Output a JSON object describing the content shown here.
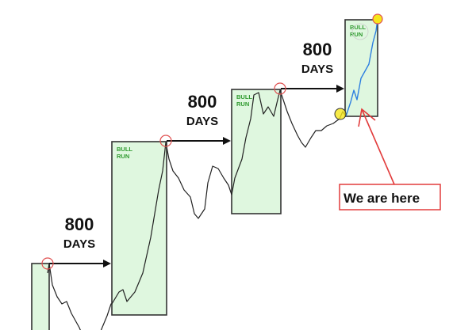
{
  "chart_data": {
    "type": "line",
    "title": "",
    "xlabel": "",
    "ylabel": "",
    "grid": false,
    "colors": {
      "price": "#222222",
      "current_run": "#2d7fe0",
      "bull_box": "#dff7df",
      "peak_circle": "#e05050",
      "callout": "#e23c3c",
      "highlight": "#f5e61a"
    },
    "cycle_label": {
      "number": "800",
      "unit": "DAYS"
    },
    "bull_run_label": {
      "line1": "BULL",
      "line2": "RUN"
    },
    "callout_text": "We are here",
    "x": [
      200,
      220,
      260,
      320,
      380,
      440,
      500,
      550,
      600,
      650,
      700,
      750,
      800,
      850,
      900,
      950,
      1000,
      1010,
      1100,
      1150,
      1200,
      1300,
      1400,
      1500,
      1550,
      1600,
      1650,
      1690,
      1730,
      1780,
      1850,
      1920,
      2000,
      2050,
      2100,
      2180,
      2220,
      2280,
      2350,
      2420,
      2480,
      2520,
      2560,
      2650,
      2700,
      2760,
      2800,
      2860,
      2920,
      2980,
      3050,
      3100,
      3130,
      3180,
      3220,
      3280,
      3350,
      3400,
      3450,
      3520,
      3580,
      3650,
      3720,
      3800,
      3880,
      3920,
      3960
    ],
    "values": [
      24,
      28,
      19,
      14,
      11,
      12,
      7,
      4,
      1,
      -3,
      -5,
      -5,
      -4,
      -2,
      2,
      6,
      11,
      11,
      16,
      17,
      12,
      16,
      24,
      39,
      49,
      59,
      67,
      79,
      72,
      67,
      64,
      59,
      56,
      49,
      47,
      51,
      62,
      69,
      68,
      64,
      61,
      57,
      64,
      72,
      81,
      89,
      99,
      100,
      91,
      94,
      90,
      97,
      101,
      96,
      92,
      87,
      82,
      79,
      77,
      81,
      84,
      84,
      86,
      87,
      89,
      92,
      90
    ],
    "current_run": {
      "x": [
        3960,
        4020,
        4060,
        4100,
        4150,
        4200,
        4250,
        4300,
        4340,
        4360
      ],
      "values": [
        90,
        96,
        101,
        97,
        106,
        109,
        112,
        121,
        126,
        131
      ]
    }
  }
}
